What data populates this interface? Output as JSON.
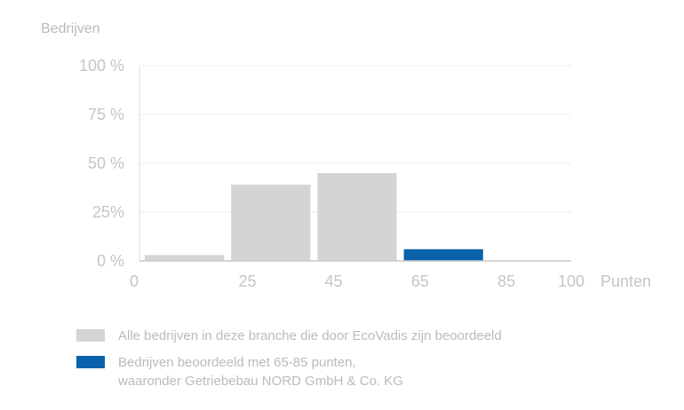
{
  "chart_data": {
    "type": "bar",
    "ylabel": "Bedrijven",
    "xlabel": "Punten",
    "ylim": [
      0,
      100
    ],
    "xlim": [
      0,
      100
    ],
    "y_ticks": [
      "0 %",
      "25%",
      "50 %",
      "75 %",
      "100 %"
    ],
    "y_tick_values": [
      0,
      25,
      50,
      75,
      100
    ],
    "x_ticks": [
      "0",
      "25",
      "45",
      "65",
      "85",
      "100"
    ],
    "x_tick_values": [
      0,
      25,
      45,
      65,
      85,
      100
    ],
    "grid": true,
    "bins": [
      {
        "from": 0,
        "to": 25,
        "value": 3,
        "series": 0
      },
      {
        "from": 25,
        "to": 45,
        "value": 39,
        "series": 0
      },
      {
        "from": 45,
        "to": 65,
        "value": 45,
        "series": 0
      },
      {
        "from": 65,
        "to": 85,
        "value": 6,
        "series": 1
      },
      {
        "from": 85,
        "to": 100,
        "value": 0,
        "series": 0
      }
    ],
    "series": [
      {
        "name": "Alle bedrijven in deze branche die door EcoVadis zijn beoordeeld",
        "color": "#d3d4d6"
      },
      {
        "name": "Bedrijven beoordeeld met 65-85 punten,",
        "name_line2": "waaronder Getriebebau NORD GmbH & Co. KG",
        "color": "#0a62ab"
      }
    ]
  }
}
